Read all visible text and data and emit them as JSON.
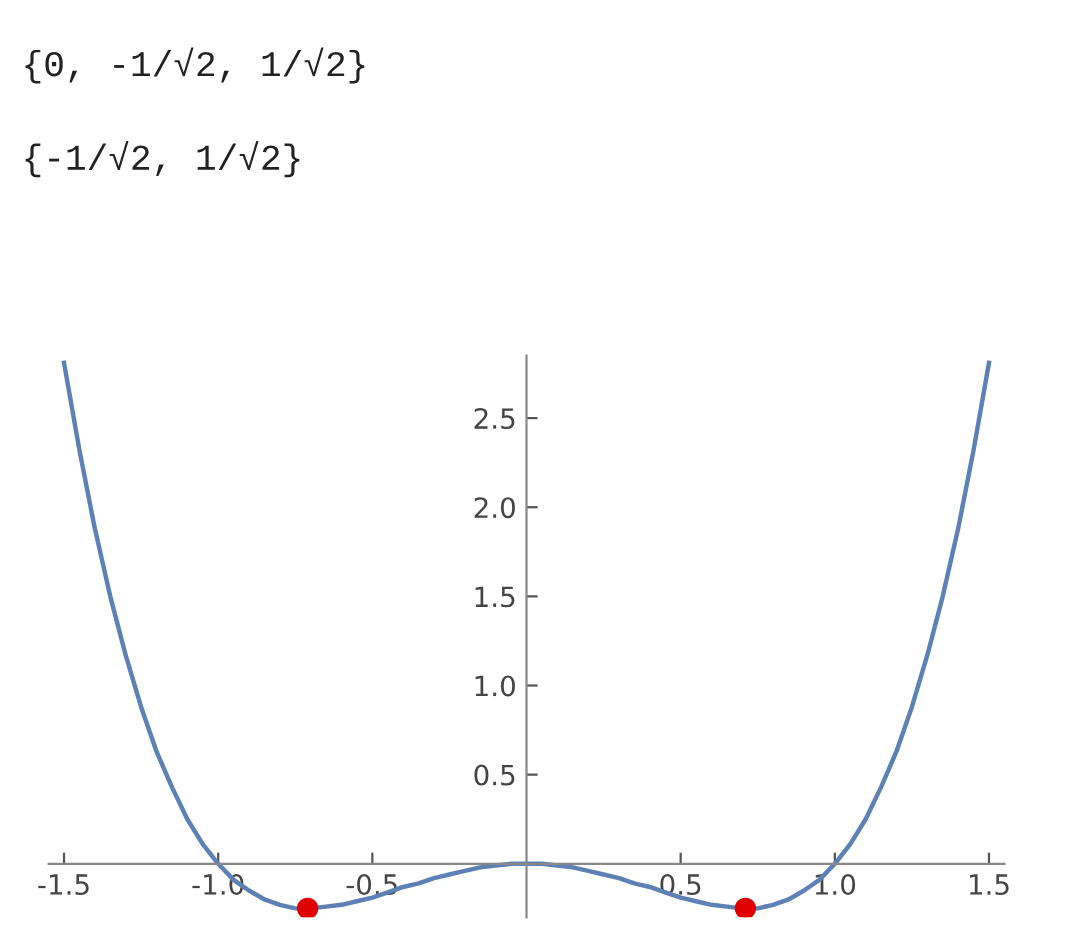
{
  "chart_data": {
    "type": "line",
    "annotations": [
      "{0, -1/√2, 1/√2}",
      "{-1/√2, 1/√2}"
    ],
    "series": [
      {
        "color": "#5e81b5",
        "marker": "none",
        "x": [
          -1.5,
          -1.45,
          -1.4,
          -1.35,
          -1.3,
          -1.25,
          -1.2,
          -1.15,
          -1.1,
          -1.05,
          -1.0,
          -0.95,
          -0.9,
          -0.85,
          -0.8,
          -0.75,
          -0.7,
          -0.65,
          -0.6,
          -0.55,
          -0.5,
          -0.45,
          -0.4,
          -0.35,
          -0.3,
          -0.25,
          -0.2,
          -0.15,
          -0.1,
          -0.05,
          0,
          0.05,
          0.1,
          0.15,
          0.2,
          0.25,
          0.3,
          0.35,
          0.4,
          0.45,
          0.5,
          0.55,
          0.6,
          0.65,
          0.7,
          0.75,
          0.8,
          0.85,
          0.9,
          0.95,
          1.0,
          1.05,
          1.1,
          1.15,
          1.2,
          1.25,
          1.3,
          1.35,
          1.4,
          1.45,
          1.5
        ],
        "values": [
          2.81,
          2.32,
          1.88,
          1.5,
          1.17,
          0.88,
          0.63,
          0.43,
          0.25,
          0.11,
          0,
          -0.09,
          -0.15,
          -0.2,
          -0.23,
          -0.25,
          -0.25,
          -0.24,
          -0.23,
          -0.21,
          -0.19,
          -0.16,
          -0.13,
          -0.11,
          -0.08,
          -0.06,
          -0.04,
          -0.02,
          -0.01,
          0,
          0,
          0,
          -0.01,
          -0.02,
          -0.04,
          -0.06,
          -0.08,
          -0.11,
          -0.13,
          -0.16,
          -0.19,
          -0.21,
          -0.23,
          -0.24,
          -0.25,
          -0.25,
          -0.23,
          -0.2,
          -0.15,
          -0.09,
          0,
          0.11,
          0.25,
          0.43,
          0.63,
          0.88,
          1.17,
          1.5,
          1.88,
          2.32,
          2.81
        ]
      },
      {
        "type": "scatter",
        "color": "#e00000",
        "marker": "circle",
        "x": [
          -0.71,
          0.71
        ],
        "values": [
          -0.25,
          -0.25
        ]
      }
    ],
    "xlim": [
      -1.55,
      1.55
    ],
    "ylim": [
      -0.3,
      2.85
    ],
    "xticks": [
      -1.5,
      {
        "value": -1,
        "label": "-1.0"
      },
      -0.5,
      0.5,
      {
        "value": 1,
        "label": "1.0"
      },
      1.5
    ],
    "yticks": [
      0.5,
      {
        "value": 1,
        "label": "1.0"
      },
      1.5,
      {
        "value": 2,
        "label": "2.0"
      },
      2.5
    ],
    "grid": false
  }
}
